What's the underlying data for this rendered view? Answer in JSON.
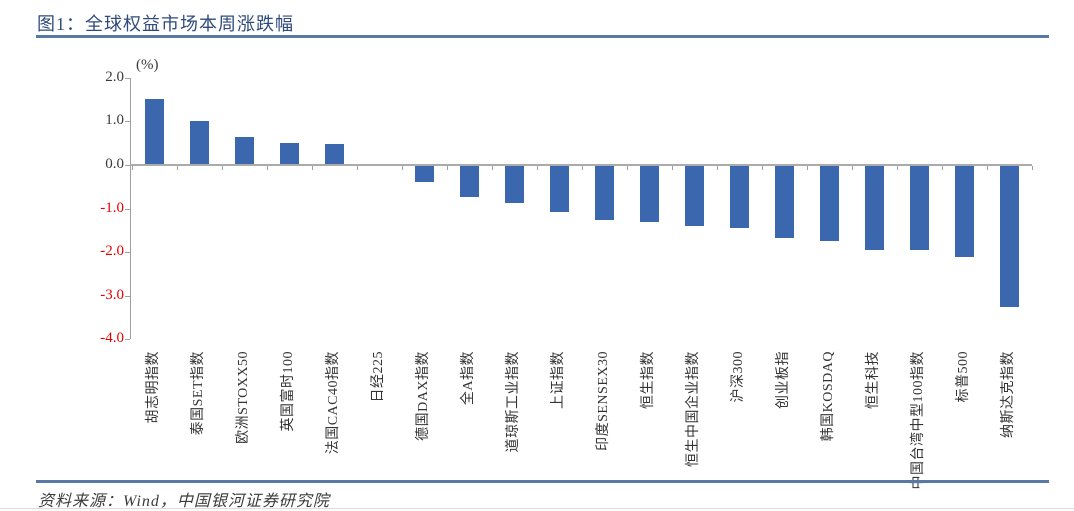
{
  "figure": {
    "title": "图1：全球权益市场本周涨跌幅",
    "source": "资料来源：Wind，中国银河证券研究院"
  },
  "chart_data": {
    "type": "bar",
    "title": "全球权益市场本周涨跌幅",
    "unit_label": "(%)",
    "xlabel": "",
    "ylabel": "(%)",
    "ylim": [
      -4.0,
      2.0
    ],
    "yticks": [
      2.0,
      1.0,
      0.0,
      -1.0,
      -2.0,
      -3.0,
      -4.0
    ],
    "grid": false,
    "legend": "none",
    "categories": [
      "胡志明指数",
      "泰国SET指数",
      "欧洲STOXX50",
      "英国富时100",
      "法国CAC40指数",
      "日经225",
      "德国DAX指数",
      "全A指数",
      "道琼斯工业指数",
      "上证指数",
      "印度SENSEX30",
      "恒生指数",
      "恒生中国企业指数",
      "沪深300",
      "创业板指",
      "韩国KOSDAQ",
      "恒生科技",
      "中国台湾中型100指数",
      "标普500",
      "纳斯达克指数"
    ],
    "values": [
      1.52,
      1.0,
      0.64,
      0.5,
      0.48,
      0.0,
      -0.38,
      -0.73,
      -0.88,
      -1.08,
      -1.27,
      -1.31,
      -1.4,
      -1.44,
      -1.68,
      -1.74,
      -1.94,
      -1.96,
      -2.12,
      -3.26
    ]
  },
  "colors": {
    "bar": "#3A67AD",
    "title_text": "#2F4B7C",
    "divider": "#5878A5",
    "axis": "#A0A0A0",
    "tick_label_positive": "#3A3A3A",
    "tick_label_negative": "#E60000",
    "category_label": "#333333",
    "source_text": "#3C3C3C"
  }
}
